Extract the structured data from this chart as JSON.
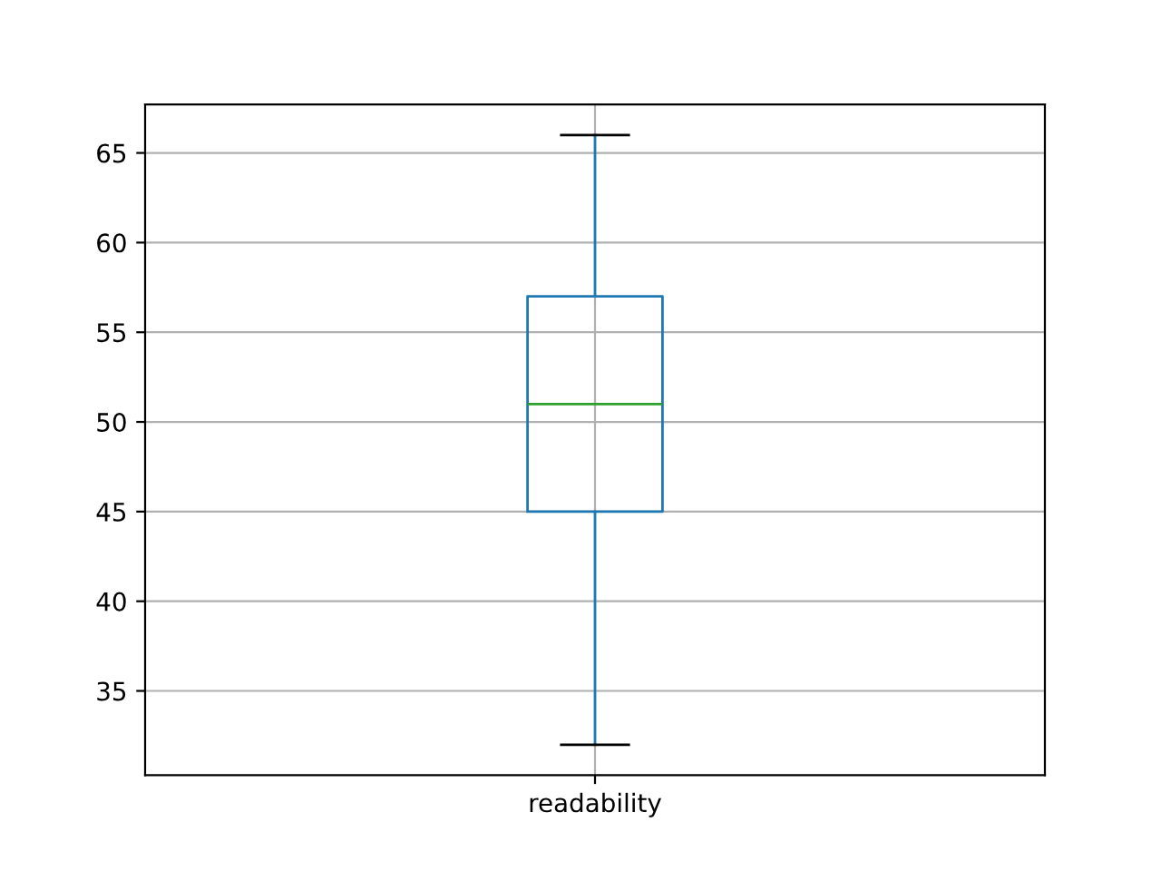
{
  "chart_data": {
    "type": "box",
    "categories": [
      "readability"
    ],
    "boxes": [
      {
        "low": 32,
        "q1": 45,
        "median": 51,
        "q3": 57,
        "high": 66
      }
    ],
    "color": "#1f77b4",
    "ylim": [
      30.3,
      67.7
    ],
    "yticks": [
      35,
      40,
      45,
      50,
      55,
      60,
      65
    ],
    "grid": true
  }
}
